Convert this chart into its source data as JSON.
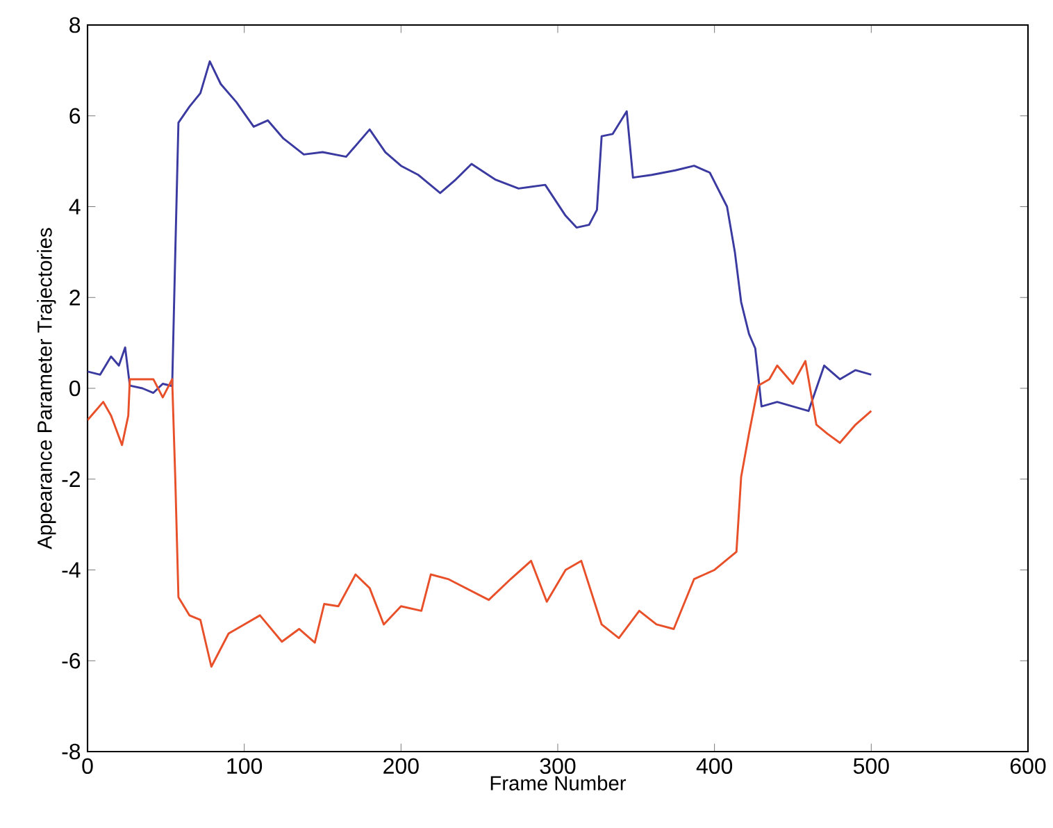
{
  "chart_data": {
    "type": "line",
    "xlabel": "Frame Number",
    "ylabel": "Appearance Parameter Trajectories",
    "xlim": [
      0,
      600
    ],
    "ylim": [
      -8,
      8
    ],
    "xticks": [
      0,
      100,
      200,
      300,
      400,
      500,
      600
    ],
    "yticks": [
      -8,
      -6,
      -4,
      -2,
      0,
      2,
      4,
      6,
      8
    ],
    "grid": false,
    "marker": "none",
    "line_style": "solid",
    "series": [
      {
        "color": "#3a3aa0",
        "x": [
          0,
          8,
          15,
          20,
          24,
          27,
          35,
          42,
          48,
          54,
          56,
          58,
          65,
          72,
          78,
          85,
          95,
          106,
          115,
          125,
          138,
          150,
          165,
          180,
          190,
          200,
          211,
          225,
          235,
          245,
          260,
          275,
          292,
          305,
          312,
          320,
          325,
          328,
          335,
          344,
          348,
          360,
          375,
          387,
          397,
          408,
          413,
          417,
          422,
          426,
          430,
          440,
          450,
          460,
          465,
          470,
          480,
          490,
          500
        ],
        "values": [
          0.37,
          0.3,
          0.7,
          0.5,
          0.9,
          0.06,
          0.0,
          -0.1,
          0.1,
          0.05,
          3.0,
          5.85,
          6.2,
          6.5,
          7.2,
          6.7,
          6.3,
          5.76,
          5.9,
          5.5,
          5.15,
          5.2,
          5.1,
          5.7,
          5.2,
          4.9,
          4.7,
          4.3,
          4.6,
          4.94,
          4.6,
          4.4,
          4.48,
          3.8,
          3.54,
          3.6,
          3.93,
          5.55,
          5.6,
          6.1,
          4.64,
          4.7,
          4.8,
          4.9,
          4.75,
          4.0,
          3.0,
          1.9,
          1.2,
          0.88,
          -0.4,
          -0.3,
          -0.4,
          -0.5,
          0.0,
          0.5,
          0.2,
          0.4,
          0.3
        ]
      },
      {
        "color": "#e8502a",
        "x": [
          0,
          5,
          10,
          15,
          22,
          26,
          27,
          35,
          42,
          48,
          54,
          56,
          58,
          65,
          72,
          79,
          90,
          100,
          110,
          124,
          135,
          145,
          151,
          160,
          171,
          180,
          189,
          200,
          213,
          219,
          230,
          256,
          270,
          283,
          293,
          305,
          315,
          328,
          339,
          352,
          363,
          374,
          387,
          400,
          414,
          417,
          422,
          428,
          435,
          440,
          450,
          458,
          465,
          472,
          480,
          490,
          500
        ],
        "values": [
          -0.7,
          -0.5,
          -0.3,
          -0.6,
          -1.25,
          -0.6,
          0.2,
          0.2,
          0.2,
          -0.2,
          0.2,
          -2.0,
          -4.6,
          -5.0,
          -5.1,
          -6.13,
          -5.4,
          -5.2,
          -5.0,
          -5.58,
          -5.3,
          -5.6,
          -4.75,
          -4.8,
          -4.1,
          -4.4,
          -5.2,
          -4.8,
          -4.9,
          -4.1,
          -4.2,
          -4.66,
          -4.2,
          -3.8,
          -4.7,
          -4.0,
          -3.8,
          -5.2,
          -5.5,
          -4.9,
          -5.2,
          -5.3,
          -4.2,
          -4.0,
          -3.6,
          -1.95,
          -1.0,
          0.06,
          0.2,
          0.5,
          0.1,
          0.6,
          -0.8,
          -1.0,
          -1.2,
          -0.8,
          -0.5
        ]
      }
    ]
  }
}
